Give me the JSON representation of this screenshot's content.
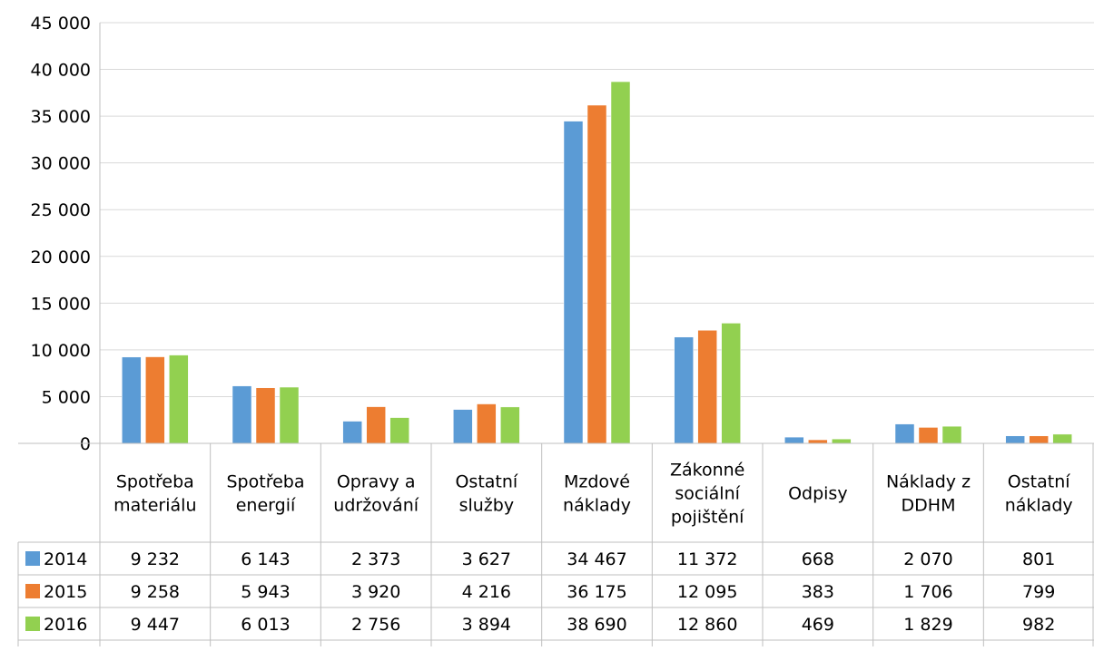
{
  "chart_data": {
    "type": "bar",
    "title": "",
    "xlabel": "",
    "ylabel": "",
    "ylim": [
      0,
      45000
    ],
    "yticks": [
      "0",
      "5 000",
      "10 000",
      "15 000",
      "20 000",
      "25 000",
      "30 000",
      "35 000",
      "40 000",
      "45 000"
    ],
    "categories": [
      [
        "Spotřeba",
        "materiálu"
      ],
      [
        "Spotřeba",
        "energií"
      ],
      [
        "Opravy a",
        "udržování"
      ],
      [
        "Ostatní",
        "služby"
      ],
      [
        "Mzdové",
        "náklady"
      ],
      [
        "Zákonné",
        "sociální",
        "pojištění"
      ],
      [
        "Odpisy"
      ],
      [
        "Náklady z",
        "DDHM"
      ],
      [
        "Ostatní",
        "náklady"
      ]
    ],
    "series": [
      {
        "name": "2014",
        "color": "#5B9BD5",
        "values": [
          9232,
          6143,
          2373,
          3627,
          34467,
          11372,
          668,
          2070,
          801
        ],
        "labels": [
          "9 232",
          "6 143",
          "2 373",
          "3 627",
          "34 467",
          "11 372",
          "668",
          "2 070",
          "801"
        ]
      },
      {
        "name": "2015",
        "color": "#ED7D31",
        "values": [
          9258,
          5943,
          3920,
          4216,
          36175,
          12095,
          383,
          1706,
          799
        ],
        "labels": [
          "9 258",
          "5 943",
          "3 920",
          "4 216",
          "36 175",
          "12 095",
          "383",
          "1 706",
          "799"
        ]
      },
      {
        "name": "2016",
        "color": "#92D050",
        "values": [
          9447,
          6013,
          2756,
          3894,
          38690,
          12860,
          469,
          1829,
          982
        ],
        "labels": [
          "9 447",
          "6 013",
          "2 756",
          "3 894",
          "38 690",
          "12 860",
          "469",
          "1 829",
          "982"
        ]
      }
    ],
    "grid": true,
    "legend": "data-table-left"
  }
}
